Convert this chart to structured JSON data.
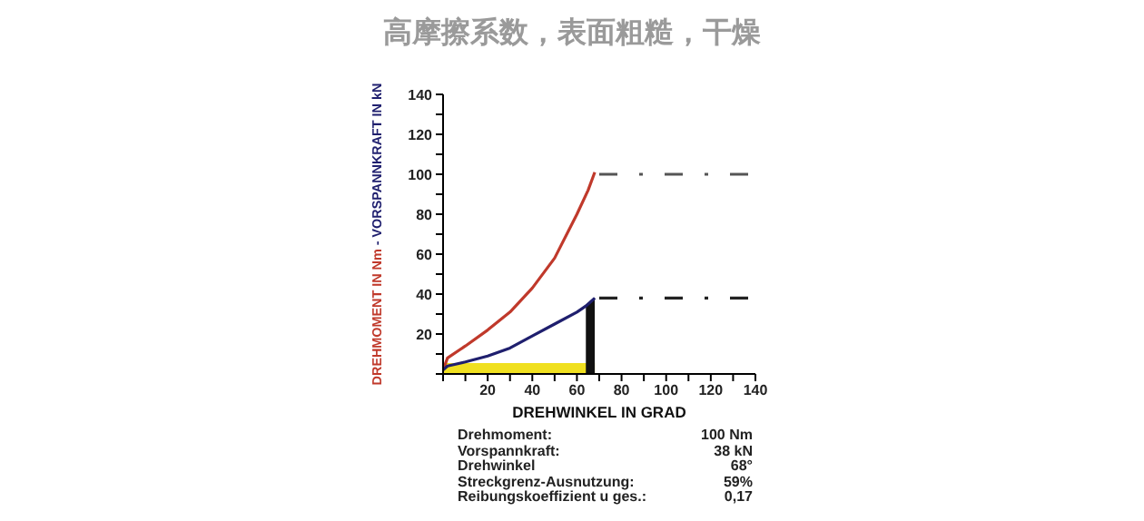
{
  "chart_data": {
    "type": "line",
    "title": "高摩擦系数，表面粗糙，干燥",
    "xlabel": "DREHWINKEL IN GRAD",
    "ylabel": "DREHMOMENT IN Nm - VORSPANNKRAFT IN kN",
    "xlim": [
      0,
      140
    ],
    "xticks": [
      {
        "value": 0,
        "label": null
      },
      {
        "value": 10,
        "label": null
      },
      20,
      {
        "value": 30,
        "label": null
      },
      40,
      {
        "value": 50,
        "label": null
      },
      60,
      {
        "value": 70,
        "label": null
      },
      80,
      {
        "value": 90,
        "label": null
      },
      100,
      {
        "value": 110,
        "label": null
      },
      120,
      {
        "value": 130,
        "label": null
      },
      140
    ],
    "ylim": [
      0,
      140
    ],
    "yticks": [
      {
        "value": 0,
        "label": null
      },
      {
        "value": 10,
        "label": null
      },
      20,
      {
        "value": 30,
        "label": null
      },
      40,
      {
        "value": 50,
        "label": null
      },
      60,
      {
        "value": 70,
        "label": null
      },
      80,
      {
        "value": 90,
        "label": null
      },
      100,
      {
        "value": 110,
        "label": null
      },
      120,
      {
        "value": 130,
        "label": null
      },
      140
    ],
    "series": [
      {
        "color": "#c0392b",
        "x": [
          0,
          2,
          10,
          20,
          30,
          40,
          50,
          60,
          65,
          68
        ],
        "values": [
          2,
          8,
          14,
          22,
          31,
          43,
          58,
          80,
          92,
          101
        ]
      },
      {
        "color": "#1f1f6e",
        "x": [
          0,
          2,
          10,
          20,
          30,
          40,
          50,
          60,
          64,
          68
        ],
        "values": [
          2,
          4,
          6,
          9,
          13,
          19,
          25,
          31,
          34,
          38
        ]
      },
      {
        "type": "area",
        "color": "#111111",
        "x": [
          64,
          68
        ],
        "values": [
          34,
          38
        ]
      },
      {
        "color": "#555555",
        "line_style": "dashed",
        "x": [
          70,
          140
        ],
        "values": [
          100,
          100
        ]
      },
      {
        "color": "#222222",
        "line_style": "dashed",
        "x": [
          70,
          140
        ],
        "values": [
          38,
          38
        ]
      }
    ],
    "annotations": [
      "Drehmoment:",
      "100 Nm",
      "Vorspannkraft:",
      "38 kN",
      "Drehwinkel",
      "68°",
      "Streckgrenz-Ausnutzung:",
      "59%",
      "Reibungskoeffizient u ges.:",
      "0,17"
    ]
  }
}
